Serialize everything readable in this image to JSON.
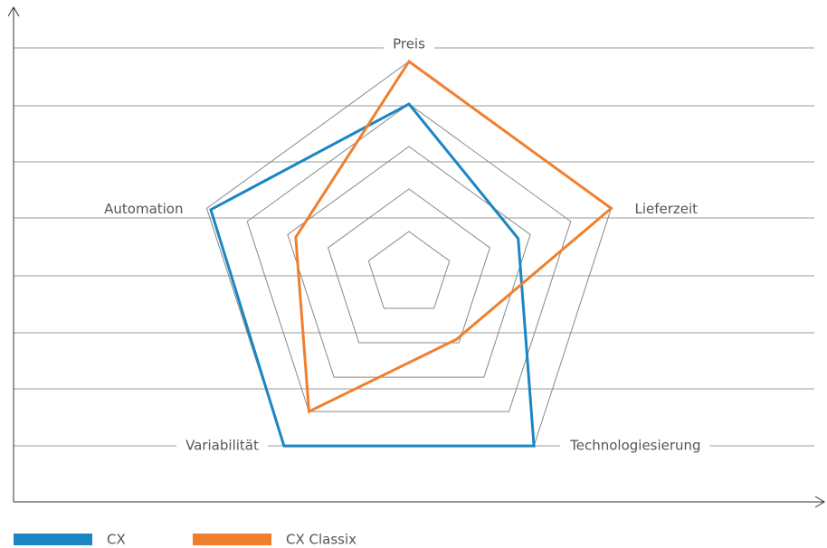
{
  "chart_data": {
    "type": "radar",
    "categories": [
      "Preis",
      "Lieferzeit",
      "Technologiesierung",
      "Variabilität",
      "Automation"
    ],
    "series": [
      {
        "name": "CX",
        "color": "#1a86c4",
        "values": [
          4,
          2.7,
          5,
          5,
          4.9
        ]
      },
      {
        "name": "CX Classix",
        "color": "#f07f2d",
        "values": [
          5,
          5,
          1.9,
          4,
          2.8
        ]
      }
    ],
    "rlim": [
      0,
      5
    ],
    "rticks": [
      1,
      2,
      3,
      4,
      5
    ],
    "legend": "bottom-left"
  }
}
